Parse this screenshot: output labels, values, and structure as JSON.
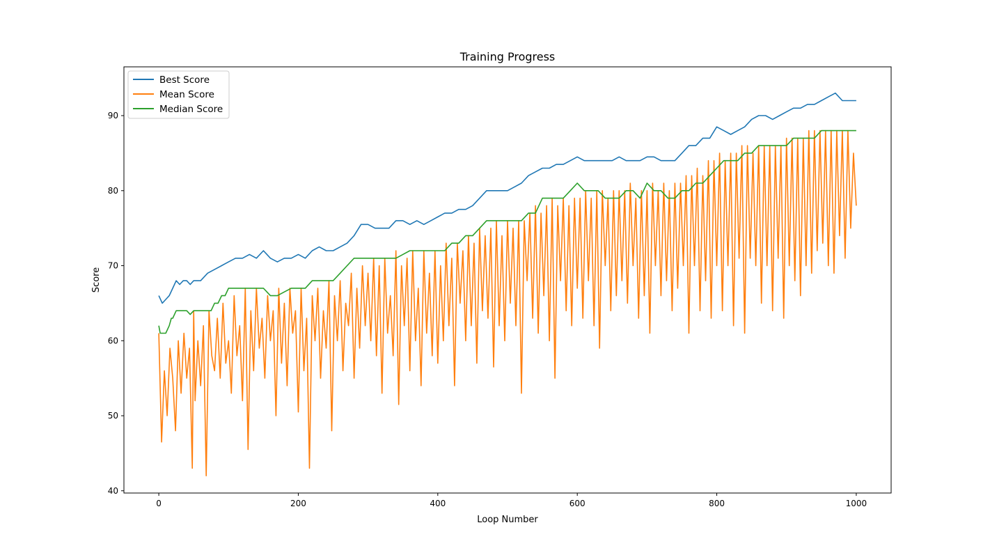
{
  "chart_data": {
    "type": "line",
    "title": "Training Progress",
    "xlabel": "Loop Number",
    "ylabel": "Score",
    "xlim": [
      -50,
      1050
    ],
    "ylim": [
      39.7,
      96.5
    ],
    "xticks": [
      0,
      200,
      400,
      600,
      800,
      1000
    ],
    "yticks": [
      40,
      50,
      60,
      70,
      80,
      90
    ],
    "grid": false,
    "legend_position": "top-left",
    "series": [
      {
        "name": "Best Score",
        "color": "#1f77b4",
        "x": [
          0,
          5,
          10,
          15,
          20,
          25,
          30,
          35,
          40,
          45,
          50,
          55,
          60,
          70,
          80,
          90,
          100,
          110,
          120,
          130,
          140,
          150,
          160,
          170,
          180,
          190,
          200,
          210,
          220,
          230,
          240,
          250,
          260,
          270,
          280,
          290,
          300,
          310,
          320,
          330,
          340,
          350,
          360,
          370,
          380,
          390,
          400,
          410,
          420,
          430,
          440,
          450,
          460,
          470,
          480,
          490,
          500,
          510,
          520,
          530,
          540,
          550,
          560,
          570,
          580,
          590,
          600,
          610,
          620,
          630,
          640,
          650,
          660,
          670,
          680,
          690,
          700,
          710,
          720,
          730,
          740,
          750,
          760,
          770,
          780,
          790,
          800,
          810,
          820,
          830,
          840,
          850,
          860,
          870,
          880,
          890,
          900,
          910,
          920,
          930,
          940,
          950,
          960,
          970,
          980,
          990,
          1000
        ],
        "values": [
          66,
          65,
          65.5,
          66,
          67,
          68,
          67.5,
          68,
          68,
          67.5,
          68,
          68,
          68,
          69,
          69.5,
          70,
          70.5,
          71,
          71,
          71.5,
          71,
          72,
          71,
          70.5,
          71,
          71,
          71.5,
          71,
          72,
          72.5,
          72,
          72,
          72.5,
          73,
          74,
          75.5,
          75.5,
          75,
          75,
          75,
          76,
          76,
          75.5,
          76,
          75.5,
          76,
          76.5,
          77,
          77,
          77.5,
          77.5,
          78,
          79,
          80,
          80,
          80,
          80,
          80.5,
          81,
          82,
          82.5,
          83,
          83,
          83.5,
          83.5,
          84,
          84.5,
          84,
          84,
          84,
          84,
          84,
          84.5,
          84,
          84,
          84,
          84.5,
          84.5,
          84,
          84,
          84,
          85,
          86,
          86,
          87,
          87,
          88.5,
          88,
          87.5,
          88,
          88.5,
          89.5,
          90,
          90,
          89.5,
          90,
          90.5,
          91,
          91,
          91.5,
          91.5,
          92,
          92.5,
          93,
          92,
          92,
          92
        ]
      },
      {
        "name": "Mean Score",
        "color": "#ff7f0e",
        "x": [
          0,
          4,
          8,
          12,
          16,
          20,
          24,
          28,
          32,
          36,
          40,
          44,
          48,
          50,
          52,
          56,
          60,
          64,
          68,
          72,
          76,
          80,
          84,
          88,
          92,
          96,
          100,
          104,
          108,
          112,
          116,
          120,
          124,
          128,
          132,
          136,
          140,
          144,
          148,
          152,
          156,
          160,
          164,
          168,
          172,
          176,
          180,
          184,
          188,
          192,
          196,
          200,
          204,
          208,
          212,
          216,
          220,
          224,
          228,
          232,
          236,
          240,
          244,
          248,
          252,
          256,
          260,
          264,
          268,
          272,
          276,
          280,
          284,
          288,
          292,
          296,
          300,
          304,
          308,
          312,
          316,
          320,
          324,
          328,
          332,
          336,
          340,
          344,
          348,
          352,
          356,
          360,
          364,
          368,
          372,
          376,
          380,
          384,
          388,
          392,
          396,
          400,
          404,
          408,
          412,
          416,
          420,
          424,
          428,
          432,
          436,
          440,
          444,
          448,
          452,
          456,
          460,
          464,
          468,
          472,
          476,
          480,
          484,
          488,
          492,
          496,
          500,
          504,
          508,
          512,
          516,
          520,
          524,
          528,
          532,
          536,
          540,
          544,
          548,
          552,
          556,
          560,
          564,
          568,
          572,
          576,
          580,
          584,
          588,
          592,
          596,
          600,
          604,
          608,
          612,
          616,
          620,
          624,
          628,
          632,
          636,
          640,
          644,
          648,
          652,
          656,
          660,
          664,
          668,
          672,
          676,
          680,
          684,
          688,
          692,
          696,
          700,
          704,
          708,
          712,
          716,
          720,
          724,
          728,
          732,
          736,
          740,
          744,
          748,
          752,
          756,
          760,
          764,
          768,
          772,
          776,
          780,
          784,
          788,
          792,
          796,
          800,
          804,
          808,
          812,
          816,
          820,
          824,
          828,
          832,
          836,
          840,
          844,
          848,
          852,
          856,
          860,
          864,
          868,
          872,
          876,
          880,
          884,
          888,
          892,
          896,
          900,
          904,
          908,
          912,
          916,
          920,
          924,
          928,
          932,
          936,
          940,
          944,
          948,
          952,
          956,
          960,
          964,
          968,
          972,
          976,
          980,
          984,
          988,
          992,
          996,
          1000
        ],
        "values": [
          61,
          46.5,
          56,
          50,
          59,
          55,
          48,
          60,
          53,
          61,
          55,
          59,
          43,
          64,
          52,
          60,
          54,
          62,
          42,
          64,
          58,
          56,
          63,
          55,
          65,
          57,
          60,
          53,
          66,
          58,
          62,
          52,
          67,
          45.5,
          64,
          56,
          67,
          59,
          63,
          55,
          66,
          60,
          64,
          50,
          67,
          57,
          65,
          54,
          67,
          61,
          64,
          50.5,
          67,
          56,
          63,
          43,
          66,
          60,
          67,
          55,
          64,
          59,
          68,
          48,
          66,
          60,
          68,
          56,
          65,
          62,
          69,
          55,
          67,
          59,
          70,
          62,
          69,
          60,
          71,
          58,
          70,
          53,
          71,
          61,
          66,
          58,
          72,
          51.5,
          70,
          62,
          71,
          56,
          72,
          60,
          67,
          54,
          72,
          61,
          69,
          58,
          72,
          57,
          70,
          60,
          73,
          62,
          71,
          54,
          73,
          65,
          72,
          60,
          74,
          62,
          73,
          57,
          75,
          64,
          74,
          63,
          75,
          56.5,
          76,
          62,
          74,
          60,
          76,
          65,
          75,
          62,
          76,
          53,
          76,
          68,
          77,
          63,
          78,
          61,
          77,
          66,
          78,
          60,
          79,
          55,
          78,
          68,
          79,
          64,
          78,
          62,
          79,
          67,
          79,
          63,
          80,
          68,
          79,
          62,
          80,
          59,
          80,
          70,
          79,
          64,
          80,
          66,
          80,
          68,
          80,
          65,
          81,
          70,
          79,
          63,
          80,
          66,
          80,
          61,
          81,
          70,
          80,
          66,
          81,
          68,
          80,
          64,
          81,
          67,
          81,
          70,
          82,
          61,
          82,
          70,
          83,
          64,
          82,
          68,
          84,
          63,
          84,
          70,
          85,
          64,
          84,
          70,
          85,
          62,
          85,
          71,
          86,
          61,
          86,
          71,
          85,
          70,
          86,
          65,
          86,
          70,
          86,
          64,
          86,
          71,
          86,
          63,
          87,
          70,
          87,
          68,
          87,
          66,
          87,
          70,
          88,
          69,
          88,
          72,
          88,
          73,
          88,
          70,
          88,
          69,
          88,
          74,
          88,
          71,
          88,
          75,
          85,
          78
        ]
      },
      {
        "name": "Median Score",
        "color": "#2ca02c",
        "x": [
          0,
          2,
          4,
          10,
          15,
          18,
          20,
          25,
          30,
          35,
          40,
          45,
          50,
          55,
          60,
          65,
          70,
          75,
          80,
          85,
          90,
          95,
          100,
          110,
          120,
          130,
          140,
          150,
          160,
          170,
          180,
          190,
          200,
          210,
          220,
          230,
          240,
          250,
          260,
          270,
          280,
          290,
          300,
          310,
          320,
          330,
          340,
          350,
          360,
          370,
          380,
          390,
          400,
          410,
          420,
          430,
          440,
          450,
          460,
          470,
          480,
          490,
          500,
          510,
          520,
          530,
          540,
          550,
          560,
          570,
          580,
          590,
          600,
          610,
          620,
          630,
          640,
          650,
          660,
          670,
          680,
          690,
          700,
          710,
          720,
          730,
          740,
          750,
          760,
          770,
          780,
          790,
          800,
          810,
          820,
          830,
          840,
          850,
          860,
          870,
          880,
          890,
          900,
          910,
          920,
          930,
          940,
          950,
          960,
          970,
          980,
          990,
          996,
          1000
        ],
        "values": [
          62,
          61,
          61,
          61,
          62,
          63,
          63,
          64,
          64,
          64,
          64,
          63.5,
          64,
          64,
          64,
          64,
          64,
          64,
          65,
          65,
          66,
          66,
          67,
          67,
          67,
          67,
          67,
          67,
          66,
          66,
          66.5,
          67,
          67,
          67,
          68,
          68,
          68,
          68,
          69,
          70,
          71,
          71,
          71,
          71,
          71,
          71,
          71,
          71.5,
          72,
          72,
          72,
          72,
          72,
          72,
          73,
          73,
          74,
          74,
          75,
          76,
          76,
          76,
          76,
          76,
          76,
          77,
          77,
          79,
          79,
          79,
          79,
          80,
          81,
          80,
          80,
          80,
          79,
          79,
          79,
          80,
          80,
          79,
          81,
          80,
          80,
          79,
          79,
          80,
          80,
          81,
          81,
          82,
          83,
          84,
          84,
          84,
          85,
          85,
          86,
          86,
          86,
          86,
          86,
          87,
          87,
          87,
          87,
          88,
          88,
          88,
          88,
          88,
          88,
          88
        ]
      }
    ]
  }
}
